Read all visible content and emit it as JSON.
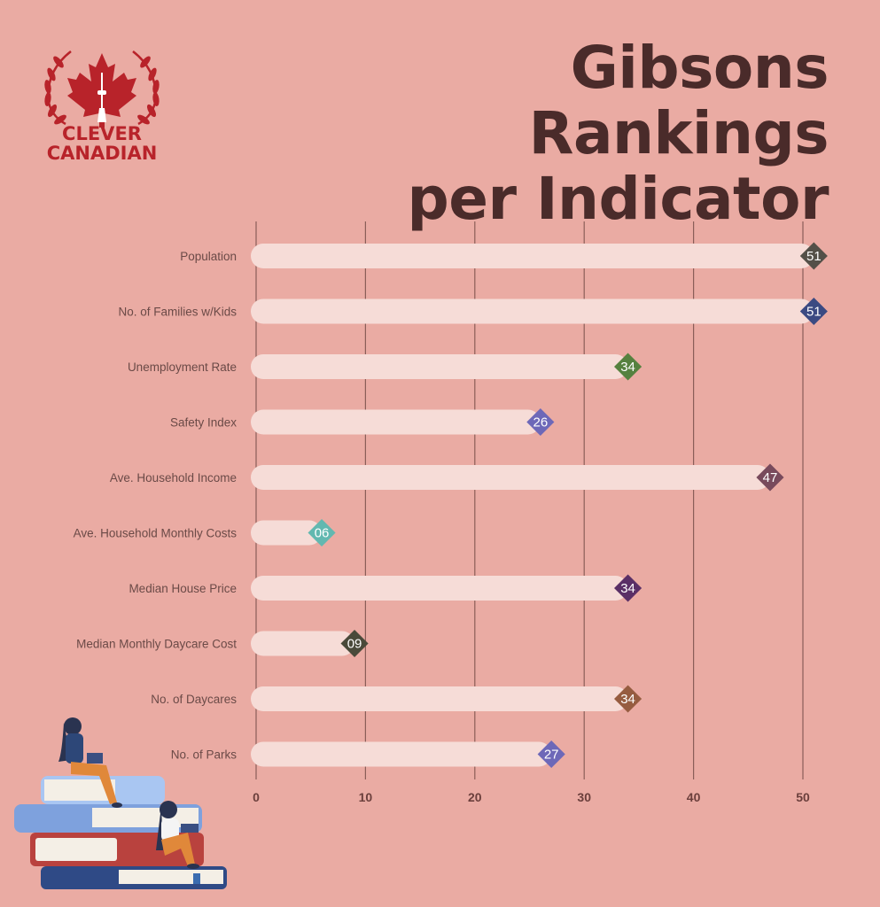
{
  "brand": {
    "line1": "CLEVER",
    "line2": "CANADIAN"
  },
  "title": {
    "line1": "Gibsons Rankings",
    "line2": "per Indicator"
  },
  "chart_data": {
    "type": "bar",
    "orientation": "horizontal",
    "categories": [
      "Population",
      "No. of Families w/Kids",
      "Unemployment Rate",
      "Safety Index",
      "Ave. Household Income",
      "Ave. Household Monthly Costs",
      "Median House Price",
      "Median Monthly Daycare Cost",
      "No. of Daycares",
      "No. of Parks"
    ],
    "values": [
      51,
      51,
      34,
      26,
      47,
      6,
      34,
      9,
      34,
      27
    ],
    "value_labels": [
      "51",
      "51",
      "34",
      "26",
      "47",
      "06",
      "34",
      "09",
      "34",
      "27"
    ],
    "marker_colors": [
      "#545048",
      "#3b4a82",
      "#56813f",
      "#6d68b8",
      "#784a5c",
      "#62b8b0",
      "#5a2f66",
      "#4a4a3a",
      "#965c40",
      "#6d68b8"
    ],
    "xticks": [
      "0",
      "10",
      "20",
      "30",
      "40",
      "50"
    ],
    "xlim": [
      0,
      50
    ],
    "grid": true,
    "bar_color": "#f6dcd7",
    "gridline_color": "#8a5e58"
  }
}
